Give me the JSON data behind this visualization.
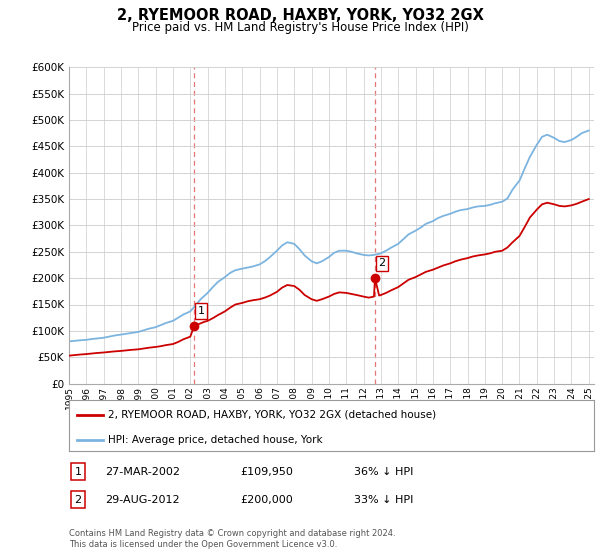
{
  "title": "2, RYEMOOR ROAD, HAXBY, YORK, YO32 2GX",
  "subtitle": "Price paid vs. HM Land Registry's House Price Index (HPI)",
  "ylim": [
    0,
    600000
  ],
  "yticks": [
    0,
    50000,
    100000,
    150000,
    200000,
    250000,
    300000,
    350000,
    400000,
    450000,
    500000,
    550000,
    600000
  ],
  "ytick_labels": [
    "£0",
    "£50K",
    "£100K",
    "£150K",
    "£200K",
    "£250K",
    "£300K",
    "£350K",
    "£400K",
    "£450K",
    "£500K",
    "£550K",
    "£600K"
  ],
  "hpi_color": "#7cb4e0",
  "price_color": "#cc0000",
  "marker_color": "#cc0000",
  "dashed_line_color": "#dd5555",
  "sale1_date": 2002.23,
  "sale1_price": 109950,
  "sale1_label": "1",
  "sale2_date": 2012.66,
  "sale2_price": 200000,
  "sale2_label": "2",
  "legend_label1": "2, RYEMOOR ROAD, HAXBY, YORK, YO32 2GX (detached house)",
  "legend_label2": "HPI: Average price, detached house, York",
  "annotation1_date": "27-MAR-2002",
  "annotation1_price": "£109,950",
  "annotation1_pct": "36% ↓ HPI",
  "annotation2_date": "29-AUG-2012",
  "annotation2_price": "£200,000",
  "annotation2_pct": "33% ↓ HPI",
  "footnote": "Contains HM Land Registry data © Crown copyright and database right 2024.\nThis data is licensed under the Open Government Licence v3.0.",
  "bg_color": "#ffffff",
  "grid_color": "#cccccc",
  "hpi_data": [
    [
      1995.0,
      80000
    ],
    [
      1995.3,
      81000
    ],
    [
      1995.6,
      82000
    ],
    [
      1996.0,
      83000
    ],
    [
      1996.3,
      84500
    ],
    [
      1996.6,
      85500
    ],
    [
      1997.0,
      87000
    ],
    [
      1997.3,
      89000
    ],
    [
      1997.6,
      91000
    ],
    [
      1998.0,
      93000
    ],
    [
      1998.3,
      94500
    ],
    [
      1998.6,
      96000
    ],
    [
      1999.0,
      98000
    ],
    [
      1999.3,
      101000
    ],
    [
      1999.6,
      104000
    ],
    [
      2000.0,
      107000
    ],
    [
      2000.3,
      111000
    ],
    [
      2000.6,
      115000
    ],
    [
      2001.0,
      119000
    ],
    [
      2001.3,
      125000
    ],
    [
      2001.6,
      131000
    ],
    [
      2002.0,
      137000
    ],
    [
      2002.3,
      148000
    ],
    [
      2002.6,
      160000
    ],
    [
      2003.0,
      172000
    ],
    [
      2003.3,
      183000
    ],
    [
      2003.6,
      193000
    ],
    [
      2004.0,
      202000
    ],
    [
      2004.3,
      210000
    ],
    [
      2004.6,
      215000
    ],
    [
      2005.0,
      218000
    ],
    [
      2005.3,
      220000
    ],
    [
      2005.6,
      222000
    ],
    [
      2006.0,
      226000
    ],
    [
      2006.3,
      232000
    ],
    [
      2006.6,
      240000
    ],
    [
      2007.0,
      252000
    ],
    [
      2007.3,
      262000
    ],
    [
      2007.6,
      268000
    ],
    [
      2008.0,
      265000
    ],
    [
      2008.3,
      255000
    ],
    [
      2008.6,
      243000
    ],
    [
      2009.0,
      232000
    ],
    [
      2009.3,
      228000
    ],
    [
      2009.6,
      232000
    ],
    [
      2010.0,
      240000
    ],
    [
      2010.3,
      248000
    ],
    [
      2010.6,
      252000
    ],
    [
      2011.0,
      252000
    ],
    [
      2011.3,
      250000
    ],
    [
      2011.6,
      247000
    ],
    [
      2012.0,
      244000
    ],
    [
      2012.3,
      243000
    ],
    [
      2012.6,
      244000
    ],
    [
      2013.0,
      247000
    ],
    [
      2013.3,
      252000
    ],
    [
      2013.6,
      258000
    ],
    [
      2014.0,
      265000
    ],
    [
      2014.3,
      274000
    ],
    [
      2014.6,
      283000
    ],
    [
      2015.0,
      290000
    ],
    [
      2015.3,
      296000
    ],
    [
      2015.6,
      303000
    ],
    [
      2016.0,
      308000
    ],
    [
      2016.3,
      314000
    ],
    [
      2016.6,
      318000
    ],
    [
      2017.0,
      322000
    ],
    [
      2017.3,
      326000
    ],
    [
      2017.6,
      329000
    ],
    [
      2018.0,
      331000
    ],
    [
      2018.3,
      334000
    ],
    [
      2018.6,
      336000
    ],
    [
      2019.0,
      337000
    ],
    [
      2019.3,
      339000
    ],
    [
      2019.6,
      342000
    ],
    [
      2020.0,
      345000
    ],
    [
      2020.3,
      351000
    ],
    [
      2020.6,
      368000
    ],
    [
      2021.0,
      385000
    ],
    [
      2021.3,
      408000
    ],
    [
      2021.6,
      430000
    ],
    [
      2022.0,
      453000
    ],
    [
      2022.3,
      468000
    ],
    [
      2022.6,
      472000
    ],
    [
      2023.0,
      466000
    ],
    [
      2023.3,
      460000
    ],
    [
      2023.6,
      458000
    ],
    [
      2024.0,
      462000
    ],
    [
      2024.3,
      468000
    ],
    [
      2024.6,
      475000
    ],
    [
      2025.0,
      480000
    ]
  ],
  "price_data": [
    [
      1995.0,
      53000
    ],
    [
      1995.3,
      54000
    ],
    [
      1995.6,
      55000
    ],
    [
      1996.0,
      56000
    ],
    [
      1996.3,
      57000
    ],
    [
      1996.6,
      58000
    ],
    [
      1997.0,
      59000
    ],
    [
      1997.3,
      60000
    ],
    [
      1997.6,
      61000
    ],
    [
      1998.0,
      62000
    ],
    [
      1998.3,
      63000
    ],
    [
      1998.6,
      64000
    ],
    [
      1999.0,
      65000
    ],
    [
      1999.3,
      66500
    ],
    [
      1999.6,
      68000
    ],
    [
      2000.0,
      69500
    ],
    [
      2000.3,
      71000
    ],
    [
      2000.6,
      73000
    ],
    [
      2001.0,
      75000
    ],
    [
      2001.3,
      79000
    ],
    [
      2001.6,
      84000
    ],
    [
      2002.0,
      89000
    ],
    [
      2002.23,
      109950
    ],
    [
      2002.5,
      113000
    ],
    [
      2002.8,
      117000
    ],
    [
      2003.0,
      119000
    ],
    [
      2003.3,
      124000
    ],
    [
      2003.6,
      130000
    ],
    [
      2004.0,
      137000
    ],
    [
      2004.3,
      144000
    ],
    [
      2004.6,
      150000
    ],
    [
      2005.0,
      153000
    ],
    [
      2005.3,
      156000
    ],
    [
      2005.6,
      158000
    ],
    [
      2006.0,
      160000
    ],
    [
      2006.3,
      163000
    ],
    [
      2006.6,
      167000
    ],
    [
      2007.0,
      174000
    ],
    [
      2007.3,
      182000
    ],
    [
      2007.6,
      187000
    ],
    [
      2008.0,
      185000
    ],
    [
      2008.3,
      178000
    ],
    [
      2008.6,
      168000
    ],
    [
      2009.0,
      160000
    ],
    [
      2009.3,
      157000
    ],
    [
      2009.6,
      160000
    ],
    [
      2010.0,
      165000
    ],
    [
      2010.3,
      170000
    ],
    [
      2010.6,
      173000
    ],
    [
      2011.0,
      172000
    ],
    [
      2011.3,
      170000
    ],
    [
      2011.6,
      168000
    ],
    [
      2012.0,
      165000
    ],
    [
      2012.3,
      163000
    ],
    [
      2012.6,
      165000
    ],
    [
      2012.66,
      200000
    ],
    [
      2012.9,
      167000
    ],
    [
      2013.0,
      168000
    ],
    [
      2013.3,
      172000
    ],
    [
      2013.6,
      177000
    ],
    [
      2014.0,
      183000
    ],
    [
      2014.3,
      190000
    ],
    [
      2014.6,
      197000
    ],
    [
      2015.0,
      202000
    ],
    [
      2015.3,
      207000
    ],
    [
      2015.6,
      212000
    ],
    [
      2016.0,
      216000
    ],
    [
      2016.3,
      220000
    ],
    [
      2016.6,
      224000
    ],
    [
      2017.0,
      228000
    ],
    [
      2017.3,
      232000
    ],
    [
      2017.6,
      235000
    ],
    [
      2018.0,
      238000
    ],
    [
      2018.3,
      241000
    ],
    [
      2018.6,
      243000
    ],
    [
      2019.0,
      245000
    ],
    [
      2019.3,
      247000
    ],
    [
      2019.6,
      250000
    ],
    [
      2020.0,
      252000
    ],
    [
      2020.3,
      258000
    ],
    [
      2020.6,
      268000
    ],
    [
      2021.0,
      280000
    ],
    [
      2021.3,
      297000
    ],
    [
      2021.6,
      315000
    ],
    [
      2022.0,
      330000
    ],
    [
      2022.3,
      340000
    ],
    [
      2022.6,
      343000
    ],
    [
      2023.0,
      340000
    ],
    [
      2023.3,
      337000
    ],
    [
      2023.6,
      336000
    ],
    [
      2024.0,
      338000
    ],
    [
      2024.3,
      341000
    ],
    [
      2024.6,
      345000
    ],
    [
      2025.0,
      350000
    ]
  ],
  "xlim_left": 1995,
  "xlim_right": 2025.3
}
